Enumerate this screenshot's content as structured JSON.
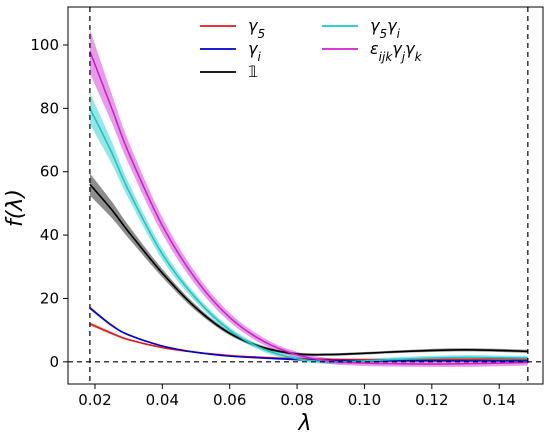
{
  "chart_data": {
    "type": "line",
    "xlabel": "λ",
    "ylabel": "f(λ)",
    "xlim": [
      0.012,
      0.153
    ],
    "ylim": [
      -7,
      112
    ],
    "xticks": [
      0.02,
      0.04,
      0.06,
      0.08,
      0.1,
      0.12,
      0.14
    ],
    "xtick_labels": [
      "0.02",
      "0.04",
      "0.06",
      "0.08",
      "0.10",
      "0.12",
      "0.14"
    ],
    "yticks": [
      0,
      20,
      40,
      60,
      80,
      100
    ],
    "ytick_labels": [
      "0",
      "20",
      "40",
      "60",
      "80",
      "100"
    ],
    "grid": false,
    "legend_position": "top-center",
    "vertical_lines_x": [
      0.0185,
      0.1485
    ],
    "horizontal_line_y": 0,
    "series": [
      {
        "name": "γ5",
        "color": "#e31a1c",
        "x": [
          0.0185,
          0.025,
          0.03,
          0.04,
          0.05,
          0.06,
          0.07,
          0.08,
          0.09,
          0.1,
          0.11,
          0.12,
          0.13,
          0.14,
          0.1485
        ],
        "y": [
          12.0,
          9.0,
          7.0,
          4.5,
          3.0,
          2.0,
          1.4,
          1.0,
          0.8,
          0.7,
          0.7,
          0.7,
          0.8,
          0.9,
          0.9
        ],
        "band": [
          0.5,
          0.4,
          0.3,
          0.2,
          0.2,
          0.2,
          0.2,
          0.2,
          0.2,
          0.2,
          0.2,
          0.2,
          0.2,
          0.2,
          0.2
        ]
      },
      {
        "name": "γi",
        "color": "#0000cc",
        "x": [
          0.0185,
          0.025,
          0.03,
          0.04,
          0.05,
          0.06,
          0.07,
          0.08,
          0.09,
          0.1,
          0.11,
          0.12,
          0.13,
          0.14,
          0.1485
        ],
        "y": [
          17.0,
          11.5,
          8.5,
          5.0,
          3.0,
          1.8,
          1.2,
          0.7,
          0.5,
          0.3,
          0.3,
          0.3,
          0.3,
          0.3,
          0.3
        ],
        "band": [
          0.5,
          0.4,
          0.3,
          0.2,
          0.2,
          0.2,
          0.2,
          0.2,
          0.2,
          0.2,
          0.2,
          0.2,
          0.2,
          0.2,
          0.2
        ]
      },
      {
        "name": "𝟙",
        "color": "#000000",
        "x": [
          0.0185,
          0.025,
          0.03,
          0.04,
          0.05,
          0.06,
          0.07,
          0.08,
          0.09,
          0.1,
          0.11,
          0.12,
          0.13,
          0.14,
          0.1485
        ],
        "y": [
          56.0,
          48.0,
          41.0,
          28.0,
          17.0,
          9.0,
          4.5,
          2.5,
          2.3,
          2.7,
          3.2,
          3.6,
          3.8,
          3.6,
          3.3
        ],
        "band": [
          3.5,
          2.6,
          2.0,
          1.3,
          0.9,
          0.6,
          0.5,
          0.4,
          0.4,
          0.4,
          0.4,
          0.5,
          0.5,
          0.5,
          0.5
        ]
      },
      {
        "name": "γ5γi",
        "color": "#17c8c8",
        "x": [
          0.0185,
          0.025,
          0.03,
          0.04,
          0.05,
          0.06,
          0.07,
          0.08,
          0.09,
          0.1,
          0.11,
          0.12,
          0.13,
          0.14,
          0.1485
        ],
        "y": [
          80.0,
          66.0,
          54.0,
          34.0,
          20.0,
          10.0,
          4.0,
          1.0,
          0.0,
          0.3,
          0.8,
          1.2,
          1.4,
          1.3,
          1.2
        ],
        "band": [
          5.0,
          3.5,
          2.5,
          1.8,
          1.2,
          0.9,
          0.8,
          0.7,
          0.7,
          0.7,
          0.7,
          0.7,
          0.7,
          0.7,
          0.7
        ]
      },
      {
        "name": "εijkγjγk",
        "color": "#cc22cc",
        "x": [
          0.0185,
          0.025,
          0.03,
          0.04,
          0.05,
          0.06,
          0.07,
          0.08,
          0.09,
          0.1,
          0.11,
          0.12,
          0.13,
          0.14,
          0.1485
        ],
        "y": [
          98.0,
          80.0,
          66.0,
          43.0,
          26.0,
          14.0,
          6.5,
          2.2,
          0.2,
          -0.4,
          -0.6,
          -0.7,
          -0.6,
          -0.4,
          -0.2
        ],
        "band": [
          7.0,
          4.5,
          3.5,
          2.6,
          1.9,
          1.4,
          1.1,
          0.9,
          0.9,
          0.9,
          0.9,
          0.9,
          1.0,
          1.0,
          1.0
        ]
      }
    ],
    "legend": [
      {
        "label_base": "γ",
        "label_sub": "5",
        "color": "#e31a1c"
      },
      {
        "label_base": "γ",
        "label_sub": "i",
        "color": "#0000cc"
      },
      {
        "label_base": "𝟙",
        "label_sub": "",
        "color": "#000000"
      },
      {
        "label_base": "γ",
        "label_sub": "5",
        "label_base2": "γ",
        "label_sub2": "i",
        "color": "#17c8c8"
      },
      {
        "label_base": "ε",
        "label_sub": "ijk",
        "label_base2": "γ",
        "label_sub2": "j",
        "label_base3": "γ",
        "label_sub3": "k",
        "color": "#cc22cc"
      }
    ]
  }
}
